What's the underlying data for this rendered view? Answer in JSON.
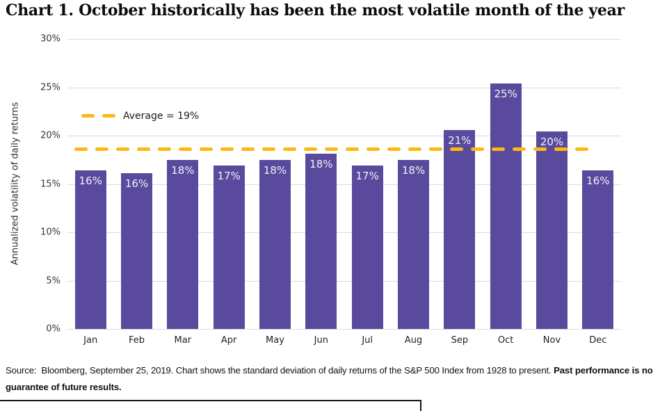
{
  "chart_data": {
    "type": "bar",
    "title": "Chart 1. October historically has been the most volatile month of the year",
    "ylabel": "Annualized volatility of daily returns",
    "xlabel": "",
    "categories": [
      "Jan",
      "Feb",
      "Mar",
      "Apr",
      "May",
      "Jun",
      "Jul",
      "Aug",
      "Sep",
      "Oct",
      "Nov",
      "Dec"
    ],
    "values": [
      16.4,
      16.1,
      17.5,
      16.9,
      17.5,
      18.1,
      16.9,
      17.5,
      20.6,
      25.4,
      20.4,
      16.4
    ],
    "bar_labels": [
      "16%",
      "16%",
      "18%",
      "17%",
      "18%",
      "18%",
      "17%",
      "18%",
      "21%",
      "25%",
      "20%",
      "16%"
    ],
    "y_ticks": [
      "0%",
      "5%",
      "10%",
      "15%",
      "20%",
      "25%",
      "30%"
    ],
    "ylim": [
      0,
      30
    ],
    "grid": "horizontal",
    "legend_position": "inside-top-left",
    "average_line": {
      "label": "Average = 19%",
      "value": 18.6
    },
    "bar_color": "#5a4a9d",
    "average_line_color": "#fcb813"
  },
  "footer": {
    "source_regular": "Source:  Bloomberg, September 25, 2019. Chart shows the standard deviation of daily returns of the S&P 500 Index from 1928 to present. ",
    "source_bold": "Past performance is no guarantee of future results."
  }
}
